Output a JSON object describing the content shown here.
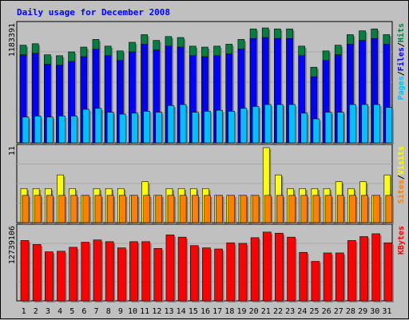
{
  "chart_data": {
    "type": "bar",
    "title": "Daily usage for December 2008",
    "colors": {
      "hits": "#008040",
      "files": "#0000ff",
      "pages": "#00c0ff",
      "visits": "#ffff00",
      "sites": "#ff8000",
      "kbytes": "#ff0000",
      "weekend_label": "#008040",
      "background": "#c0c0c0",
      "title": "#0000ff"
    },
    "categories": [
      "1",
      "2",
      "3",
      "4",
      "5",
      "6",
      "7",
      "8",
      "9",
      "10",
      "11",
      "12",
      "13",
      "14",
      "15",
      "16",
      "17",
      "18",
      "19",
      "20",
      "21",
      "22",
      "23",
      "24",
      "25",
      "26",
      "27",
      "28",
      "29",
      "30",
      "31"
    ],
    "weekend_days": [
      "6",
      "7",
      "13",
      "14",
      "20",
      "21",
      "27",
      "28"
    ],
    "panels": [
      {
        "id": "hits",
        "ytick_label": "1183391",
        "ylim": [
          0,
          1183391
        ],
        "right_label": [
          "Pages",
          "/",
          "Files",
          "/",
          "Hits"
        ],
        "right_label_colors": [
          "#00c0ff",
          "#000000",
          "#0000ff",
          "#000000",
          "#008040"
        ],
        "series": [
          {
            "name": "Hits",
            "values": [
              1020000,
              1035000,
              920000,
              910000,
              950000,
              1000000,
              1080000,
              1010000,
              960000,
              1050000,
              1130000,
              1070000,
              1110000,
              1100000,
              1010000,
              1000000,
              1010000,
              1030000,
              1080000,
              1190000,
              1200000,
              1190000,
              1190000,
              1010000,
              790000,
              960000,
              1020000,
              1130000,
              1170000,
              1190000,
              1130000
            ]
          },
          {
            "name": "Files",
            "values": [
              920000,
              935000,
              820000,
              810000,
              850000,
              900000,
              980000,
              910000,
              860000,
              950000,
              1030000,
              970000,
              1010000,
              1000000,
              910000,
              900000,
              910000,
              930000,
              980000,
              1090000,
              1100000,
              1090000,
              1090000,
              910000,
              690000,
              860000,
              920000,
              1030000,
              1070000,
              1090000,
              1030000
            ]
          },
          {
            "name": "Pages",
            "values": [
              270000,
              280000,
              270000,
              280000,
              280000,
              350000,
              360000,
              320000,
              300000,
              310000,
              330000,
              320000,
              390000,
              400000,
              320000,
              330000,
              340000,
              330000,
              360000,
              380000,
              400000,
              400000,
              400000,
              310000,
              250000,
              320000,
              320000,
              400000,
              400000,
              400000,
              370000
            ]
          }
        ]
      },
      {
        "id": "visits",
        "ytick_label": "11",
        "ylim": [
          0,
          11
        ],
        "right_label": [
          "Sites",
          "/",
          "Visits"
        ],
        "right_label_colors": [
          "#ff8000",
          "#000000",
          "#ffff00"
        ],
        "series": [
          {
            "name": "Visits",
            "values": [
              5,
              5,
              5,
              7,
              5,
              4,
              5,
              5,
              5,
              4,
              6,
              4,
              5,
              5,
              5,
              5,
              4,
              4,
              4,
              4,
              11,
              7,
              5,
              5,
              5,
              5,
              6,
              5,
              6,
              4,
              7
            ]
          },
          {
            "name": "Sites",
            "values": [
              4,
              4,
              4,
              4,
              4,
              4,
              4,
              4,
              4,
              4,
              4,
              4,
              4,
              4,
              4,
              4,
              4,
              4,
              4,
              4,
              4,
              4,
              4,
              4,
              4,
              4,
              4,
              4,
              4,
              4,
              4
            ]
          }
        ]
      },
      {
        "id": "kbytes",
        "ytick_label": "12739106",
        "ylim": [
          0,
          12739106
        ],
        "right_label": [
          "KBytes"
        ],
        "right_label_colors": [
          "#ff0000"
        ],
        "series": [
          {
            "name": "KBytes",
            "values": [
              10700000,
              10000000,
              8700000,
              8800000,
              9500000,
              10400000,
              10800000,
              10500000,
              9400000,
              10500000,
              10500000,
              9300000,
              11700000,
              11300000,
              9800000,
              9400000,
              9200000,
              10300000,
              10200000,
              11200000,
              12200000,
              12000000,
              11300000,
              8600000,
              7000000,
              8500000,
              8500000,
              10700000,
              11400000,
              11900000,
              10300000
            ]
          }
        ]
      }
    ]
  }
}
